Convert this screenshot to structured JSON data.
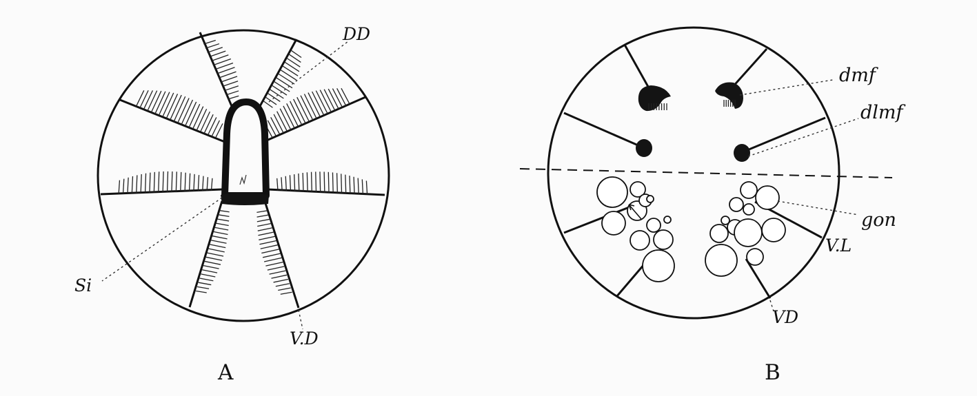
{
  "figure": {
    "panels": [
      {
        "caption": "A",
        "labels": {
          "dd": "DD",
          "si": "Si",
          "vd": "V.D"
        }
      },
      {
        "caption": "B",
        "labels": {
          "dmf": "dmf",
          "dlmf": "dlmf",
          "gon": "gon",
          "vl": "V.L",
          "vd": "VD"
        }
      }
    ]
  }
}
